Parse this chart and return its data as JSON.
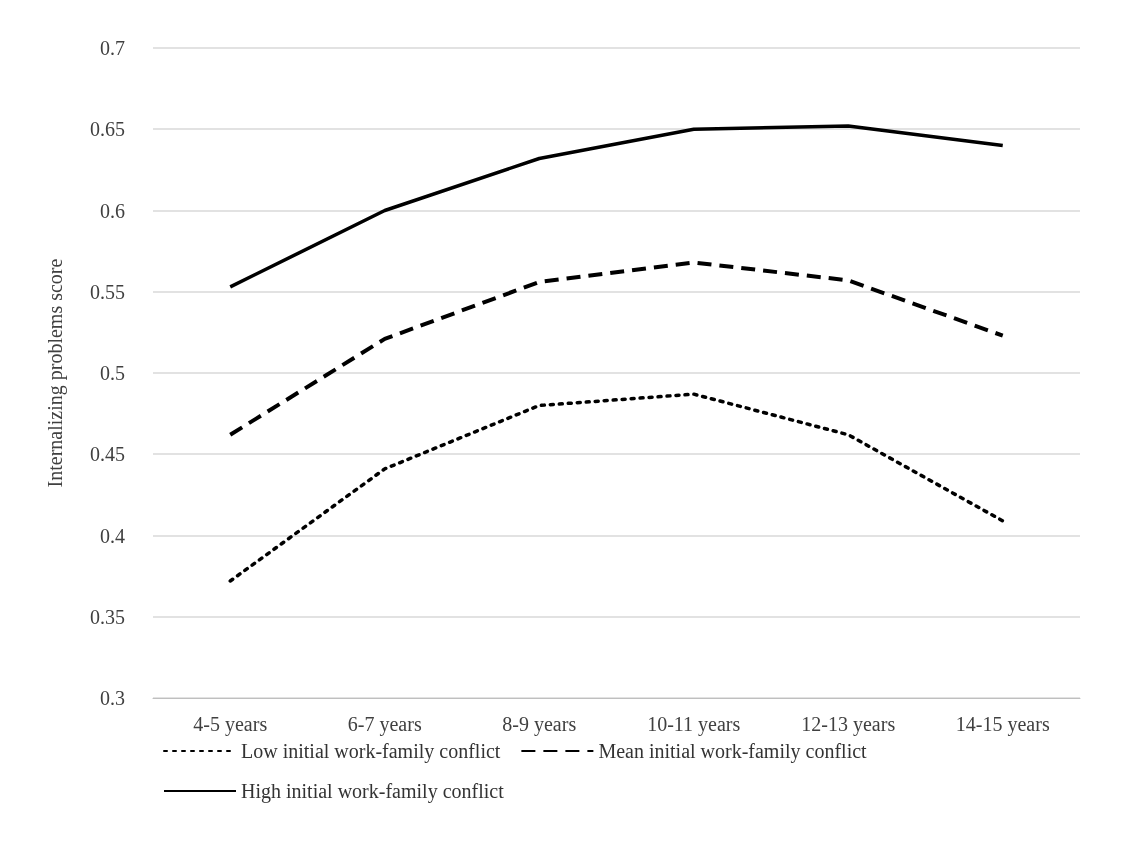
{
  "chart_data": {
    "type": "line",
    "ylabel": "Internalizing problems score",
    "categories": [
      "4-5 years",
      "6-7 years",
      "8-9 years",
      "10-11 years",
      "12-13 years",
      "14-15 years"
    ],
    "series": [
      {
        "name": "Low initial work-family conflict",
        "color": "#000000",
        "line_style": "dotted",
        "values": [
          0.372,
          0.441,
          0.48,
          0.487,
          0.462,
          0.409
        ]
      },
      {
        "name": "Mean initial work-family conflict",
        "color": "#000000",
        "line_style": "dashed",
        "values": [
          0.462,
          0.521,
          0.556,
          0.568,
          0.557,
          0.523
        ]
      },
      {
        "name": "High initial work-family conflict",
        "color": "#000000",
        "line_style": "solid",
        "values": [
          0.553,
          0.6,
          0.632,
          0.65,
          0.652,
          0.64
        ]
      }
    ],
    "ylim": [
      0.3,
      0.7
    ],
    "yticks": [
      0.3,
      0.35,
      0.4,
      0.45,
      0.5,
      0.55,
      0.6,
      0.65,
      0.7
    ],
    "grid": "y",
    "legend": "bottom",
    "marker": "none"
  }
}
